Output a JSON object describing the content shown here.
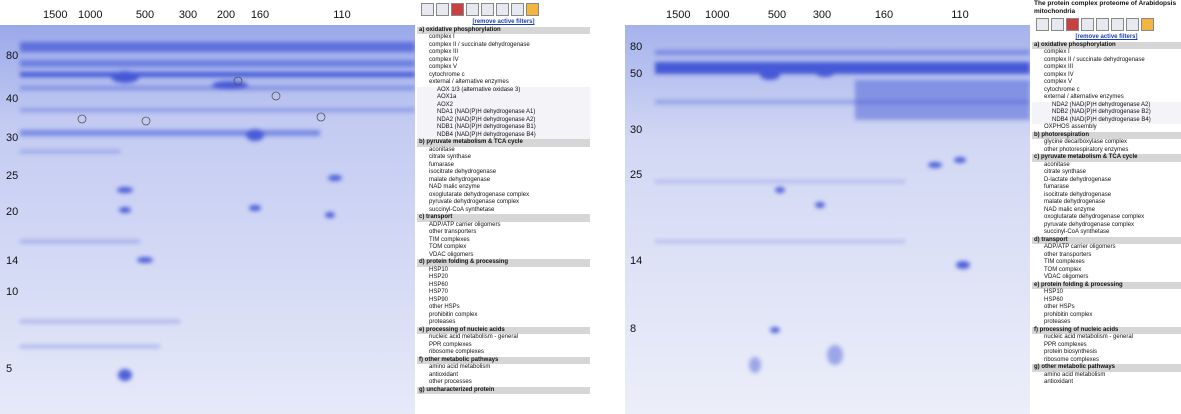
{
  "left": {
    "top_labels": [
      "1500",
      "1000",
      "500",
      "300",
      "200",
      "160",
      "110"
    ],
    "side_labels": [
      "80",
      "40",
      "30",
      "25",
      "20",
      "14",
      "10",
      "5"
    ],
    "panel": {
      "link": "[remove active filters]",
      "sections": [
        {
          "heading": "a) oxidative phosphorylation",
          "items": [
            {
              "label": "complex I"
            },
            {
              "label": "complex II / succinate dehydrogenase"
            },
            {
              "label": "complex III"
            },
            {
              "label": "complex IV"
            },
            {
              "label": "complex V"
            },
            {
              "label": "cytochrome c"
            },
            {
              "label": "external / alternative enzymes",
              "sub": [
                "AOX 1/3 (alternative oxidase 3)",
                "AOX1a",
                "AOX2",
                "NDA1 (NAD(P)H dehydrogenase A1)",
                "NDA2 (NAD(P)H dehydrogenase A2)",
                "NDB1 (NAD(P)H dehydrogenase B1)",
                "NDB4 (NAD(P)H dehydrogenase B4)"
              ]
            }
          ]
        },
        {
          "heading": "b) pyruvate metabolism & TCA cycle",
          "items": [
            {
              "label": "aconitase"
            },
            {
              "label": "citrate synthase"
            },
            {
              "label": "fumarase"
            },
            {
              "label": "isocitrate dehydrogenase"
            },
            {
              "label": "malate dehydrogenase"
            },
            {
              "label": "NAD malic enzyme"
            },
            {
              "label": "oxoglutarate dehydrogenase complex"
            },
            {
              "label": "pyruvate dehydrogenase complex"
            },
            {
              "label": "succinyl-CoA synthetase"
            }
          ]
        },
        {
          "heading": "c) transport",
          "items": [
            {
              "label": "ADP/ATP carrier oligomers"
            },
            {
              "label": "other transporters"
            },
            {
              "label": "TIM complexes"
            },
            {
              "label": "TOM complex"
            },
            {
              "label": "VDAC oligomers"
            }
          ]
        },
        {
          "heading": "d) protein folding & processing",
          "items": [
            {
              "label": "HSP10"
            },
            {
              "label": "HSP20"
            },
            {
              "label": "HSP60"
            },
            {
              "label": "HSP70"
            },
            {
              "label": "HSP90"
            },
            {
              "label": "other HSPs"
            },
            {
              "label": "prohibitin complex"
            },
            {
              "label": "proteases"
            }
          ]
        },
        {
          "heading": "e) processing of nucleic acids",
          "items": [
            {
              "label": "nucleic acid metabolism - general"
            },
            {
              "label": "PPR complexes"
            },
            {
              "label": "ribosome complexes"
            }
          ]
        },
        {
          "heading": "f) other metabolic pathways",
          "items": [
            {
              "label": "amino acid metabolism"
            },
            {
              "label": "antioxidant"
            },
            {
              "label": "other processes"
            }
          ]
        },
        {
          "heading": "g) uncharacterized protein",
          "items": []
        }
      ]
    }
  },
  "right": {
    "top_labels": [
      "1500",
      "1000",
      "500",
      "300",
      "160",
      "110"
    ],
    "side_labels": [
      "80",
      "50",
      "30",
      "25",
      "14",
      "8"
    ],
    "panel": {
      "title": "The protein complex proteome of Arabidopsis mitochondria",
      "link": "[remove active filters]",
      "sections": [
        {
          "heading": "a) oxidative phosphorylation",
          "items": [
            {
              "label": "complex I"
            },
            {
              "label": "complex II / succinate dehydrogenase"
            },
            {
              "label": "complex III"
            },
            {
              "label": "complex IV"
            },
            {
              "label": "complex V"
            },
            {
              "label": "cytochrome c"
            },
            {
              "label": "external / alternative enzymes",
              "sub": [
                "NDA2 (NAD(P)H dehydrogenase A2)",
                "NDB2 (NAD(P)H dehydrogenase B2)",
                "NDB4 (NAD(P)H dehydrogenase B4)"
              ]
            },
            {
              "label": "OXPHOS assembly"
            }
          ]
        },
        {
          "heading": "b) photorespiration",
          "items": [
            {
              "label": "glycine decarboxylase complex"
            },
            {
              "label": "other photorespiratory enzymes"
            }
          ]
        },
        {
          "heading": "c) pyruvate metabolism & TCA cycle",
          "items": [
            {
              "label": "aconitase"
            },
            {
              "label": "citrate synthase"
            },
            {
              "label": "D-lactate dehydrogenase"
            },
            {
              "label": "fumarase"
            },
            {
              "label": "isocitrate dehydrogenase"
            },
            {
              "label": "malate dehydrogenase"
            },
            {
              "label": "NAD malic enzyme"
            },
            {
              "label": "oxoglutarate dehydrogenase complex"
            },
            {
              "label": "pyruvate dehydrogenase complex"
            },
            {
              "label": "succinyl-CoA synthetase"
            }
          ]
        },
        {
          "heading": "d) transport",
          "items": [
            {
              "label": "ADP/ATP carrier oligomers"
            },
            {
              "label": "other transporters"
            },
            {
              "label": "TIM complexes"
            },
            {
              "label": "TOM complex"
            },
            {
              "label": "VDAC oligomers"
            }
          ]
        },
        {
          "heading": "e) protein folding & processing",
          "items": [
            {
              "label": "HSP10"
            },
            {
              "label": "HSP60"
            },
            {
              "label": "other HSPs"
            },
            {
              "label": "prohibitin complex"
            },
            {
              "label": "proteases"
            }
          ]
        },
        {
          "heading": "f) processing of nucleic acids",
          "items": [
            {
              "label": "nucleic acid metabolism - general"
            },
            {
              "label": "PPR complexes"
            },
            {
              "label": "protein biosynthesis"
            },
            {
              "label": "ribosome complexes"
            }
          ]
        },
        {
          "heading": "g) other metabolic pathways",
          "items": [
            {
              "label": "amino acid metabolism"
            },
            {
              "label": "antioxidant"
            }
          ]
        }
      ]
    }
  }
}
